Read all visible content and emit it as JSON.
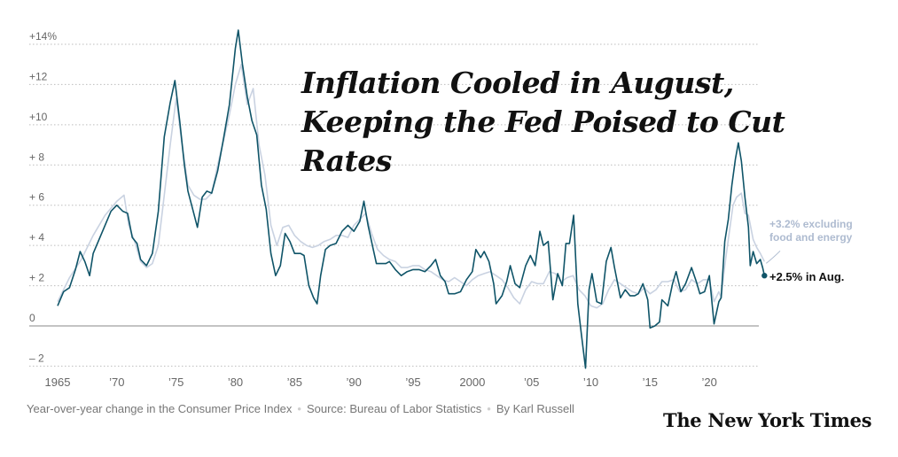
{
  "title": "Inflation Cooled in August, Keeping the Fed Poised to Cut Rates",
  "footer": {
    "description": "Year-over-year change in the Consumer Price Index",
    "source": "Source: Bureau of Labor Statistics",
    "byline": "By Karl Russell"
  },
  "brand": "The New York Times",
  "annotations": {
    "core_line1": "+3.2% excluding",
    "core_line2": "food and energy",
    "headline": "+2.5% in Aug."
  },
  "colors": {
    "headline_series": "#0f5468",
    "core_series": "#c9d2e1",
    "core_label": "#aebbd0"
  },
  "chart_data": {
    "type": "line",
    "title": "Inflation Cooled in August, Keeping the Fed Poised to Cut Rates",
    "xlabel": "",
    "ylabel": "",
    "xlim": [
      1965,
      2024.7
    ],
    "ylim": [
      -3,
      15
    ],
    "grid": true,
    "y_ticks": [
      {
        "value": 14,
        "label": "+14%"
      },
      {
        "value": 12,
        "label": "+12"
      },
      {
        "value": 10,
        "label": "+10"
      },
      {
        "value": 8,
        "label": "+ 8"
      },
      {
        "value": 6,
        "label": "+ 6"
      },
      {
        "value": 4,
        "label": "+ 4"
      },
      {
        "value": 2,
        "label": "+ 2"
      },
      {
        "value": 0,
        "label": "0"
      },
      {
        "value": -2,
        "label": "– 2"
      }
    ],
    "x_ticks": [
      {
        "value": 1965,
        "label": "1965"
      },
      {
        "value": 1970,
        "label": "’70"
      },
      {
        "value": 1975,
        "label": "’75"
      },
      {
        "value": 1980,
        "label": "’80"
      },
      {
        "value": 1985,
        "label": "’85"
      },
      {
        "value": 1990,
        "label": "’90"
      },
      {
        "value": 1995,
        "label": "’95"
      },
      {
        "value": 2000,
        "label": "2000"
      },
      {
        "value": 2005,
        "label": "’05"
      },
      {
        "value": 2010,
        "label": "’10"
      },
      {
        "value": 2015,
        "label": "’15"
      },
      {
        "value": 2020,
        "label": "’20"
      }
    ],
    "series": [
      {
        "key": "core",
        "color": "#c9d2e1",
        "points": [
          [
            1965.0,
            1.2
          ],
          [
            1966.0,
            2.4
          ],
          [
            1967.0,
            3.3
          ],
          [
            1968.0,
            4.5
          ],
          [
            1969.0,
            5.5
          ],
          [
            1970.0,
            6.2
          ],
          [
            1970.6,
            6.5
          ],
          [
            1971.0,
            5.0
          ],
          [
            1971.5,
            4.2
          ],
          [
            1972.0,
            3.2
          ],
          [
            1972.5,
            2.9
          ],
          [
            1973.0,
            3.1
          ],
          [
            1973.5,
            4.0
          ],
          [
            1974.0,
            6.5
          ],
          [
            1974.5,
            9.0
          ],
          [
            1975.0,
            11.3
          ],
          [
            1975.5,
            9.0
          ],
          [
            1976.0,
            7.0
          ],
          [
            1976.5,
            6.5
          ],
          [
            1977.0,
            6.3
          ],
          [
            1977.5,
            6.3
          ],
          [
            1978.0,
            6.6
          ],
          [
            1978.5,
            8.0
          ],
          [
            1979.0,
            9.2
          ],
          [
            1979.5,
            10.5
          ],
          [
            1980.0,
            12.0
          ],
          [
            1980.5,
            13.0
          ],
          [
            1981.0,
            11.0
          ],
          [
            1981.5,
            11.8
          ],
          [
            1982.0,
            9.0
          ],
          [
            1982.5,
            7.5
          ],
          [
            1983.0,
            5.0
          ],
          [
            1983.5,
            4.0
          ],
          [
            1984.0,
            4.9
          ],
          [
            1984.5,
            5.0
          ],
          [
            1985.0,
            4.5
          ],
          [
            1985.5,
            4.2
          ],
          [
            1986.0,
            4.0
          ],
          [
            1986.5,
            3.9
          ],
          [
            1987.0,
            4.0
          ],
          [
            1987.5,
            4.2
          ],
          [
            1988.0,
            4.3
          ],
          [
            1988.5,
            4.5
          ],
          [
            1989.0,
            4.5
          ],
          [
            1989.5,
            4.4
          ],
          [
            1990.0,
            5.0
          ],
          [
            1990.5,
            5.3
          ],
          [
            1991.0,
            5.6
          ],
          [
            1991.5,
            4.6
          ],
          [
            1992.0,
            3.8
          ],
          [
            1992.5,
            3.5
          ],
          [
            1993.0,
            3.3
          ],
          [
            1993.5,
            3.2
          ],
          [
            1994.0,
            2.9
          ],
          [
            1994.5,
            2.9
          ],
          [
            1995.0,
            3.0
          ],
          [
            1995.5,
            3.0
          ],
          [
            1996.0,
            2.8
          ],
          [
            1996.5,
            2.7
          ],
          [
            1997.0,
            2.5
          ],
          [
            1997.5,
            2.3
          ],
          [
            1998.0,
            2.2
          ],
          [
            1998.5,
            2.4
          ],
          [
            1999.0,
            2.2
          ],
          [
            1999.5,
            2.0
          ],
          [
            2000.0,
            2.3
          ],
          [
            2000.5,
            2.5
          ],
          [
            2001.0,
            2.6
          ],
          [
            2001.5,
            2.7
          ],
          [
            2002.0,
            2.5
          ],
          [
            2002.5,
            2.3
          ],
          [
            2003.0,
            1.9
          ],
          [
            2003.5,
            1.4
          ],
          [
            2004.0,
            1.1
          ],
          [
            2004.5,
            1.8
          ],
          [
            2005.0,
            2.2
          ],
          [
            2005.5,
            2.1
          ],
          [
            2006.0,
            2.1
          ],
          [
            2006.5,
            2.7
          ],
          [
            2007.0,
            2.6
          ],
          [
            2007.5,
            2.2
          ],
          [
            2008.0,
            2.4
          ],
          [
            2008.5,
            2.5
          ],
          [
            2009.0,
            1.8
          ],
          [
            2009.5,
            1.5
          ],
          [
            2010.0,
            1.0
          ],
          [
            2010.5,
            0.9
          ],
          [
            2011.0,
            1.1
          ],
          [
            2011.5,
            1.8
          ],
          [
            2012.0,
            2.3
          ],
          [
            2012.5,
            2.1
          ],
          [
            2013.0,
            1.9
          ],
          [
            2013.5,
            1.7
          ],
          [
            2014.0,
            1.6
          ],
          [
            2014.5,
            1.9
          ],
          [
            2015.0,
            1.6
          ],
          [
            2015.5,
            1.8
          ],
          [
            2016.0,
            2.2
          ],
          [
            2016.5,
            2.2
          ],
          [
            2017.0,
            2.3
          ],
          [
            2017.5,
            1.7
          ],
          [
            2018.0,
            1.8
          ],
          [
            2018.5,
            2.3
          ],
          [
            2019.0,
            2.1
          ],
          [
            2019.5,
            2.3
          ],
          [
            2020.0,
            2.3
          ],
          [
            2020.4,
            1.2
          ],
          [
            2020.8,
            1.7
          ],
          [
            2021.0,
            1.4
          ],
          [
            2021.3,
            3.0
          ],
          [
            2021.6,
            4.3
          ],
          [
            2022.0,
            6.0
          ],
          [
            2022.3,
            6.4
          ],
          [
            2022.7,
            6.6
          ],
          [
            2023.0,
            5.6
          ],
          [
            2023.3,
            5.5
          ],
          [
            2023.7,
            4.3
          ],
          [
            2024.0,
            3.9
          ],
          [
            2024.3,
            3.6
          ],
          [
            2024.65,
            3.2
          ]
        ]
      },
      {
        "key": "headline",
        "color": "#0f5468",
        "points": [
          [
            1965.0,
            1.0
          ],
          [
            1965.5,
            1.7
          ],
          [
            1966.0,
            1.9
          ],
          [
            1966.5,
            2.8
          ],
          [
            1966.9,
            3.7
          ],
          [
            1967.3,
            3.2
          ],
          [
            1967.7,
            2.5
          ],
          [
            1968.0,
            3.6
          ],
          [
            1968.5,
            4.3
          ],
          [
            1969.0,
            5.0
          ],
          [
            1969.5,
            5.7
          ],
          [
            1970.0,
            6.0
          ],
          [
            1970.5,
            5.7
          ],
          [
            1970.9,
            5.6
          ],
          [
            1971.3,
            4.4
          ],
          [
            1971.7,
            4.1
          ],
          [
            1972.0,
            3.3
          ],
          [
            1972.5,
            3.0
          ],
          [
            1973.0,
            3.6
          ],
          [
            1973.5,
            5.7
          ],
          [
            1974.0,
            9.4
          ],
          [
            1974.5,
            11.1
          ],
          [
            1974.9,
            12.2
          ],
          [
            1975.3,
            10.2
          ],
          [
            1975.7,
            8.0
          ],
          [
            1976.0,
            6.7
          ],
          [
            1976.4,
            5.8
          ],
          [
            1976.8,
            4.9
          ],
          [
            1977.2,
            6.4
          ],
          [
            1977.6,
            6.7
          ],
          [
            1978.0,
            6.6
          ],
          [
            1978.5,
            7.7
          ],
          [
            1979.0,
            9.3
          ],
          [
            1979.5,
            11.0
          ],
          [
            1980.0,
            13.8
          ],
          [
            1980.25,
            14.7
          ],
          [
            1980.6,
            13.0
          ],
          [
            1981.0,
            11.4
          ],
          [
            1981.4,
            10.2
          ],
          [
            1981.8,
            9.5
          ],
          [
            1982.2,
            7.0
          ],
          [
            1982.6,
            5.8
          ],
          [
            1983.0,
            3.6
          ],
          [
            1983.4,
            2.5
          ],
          [
            1983.8,
            3.0
          ],
          [
            1984.2,
            4.6
          ],
          [
            1984.6,
            4.2
          ],
          [
            1985.0,
            3.6
          ],
          [
            1985.5,
            3.6
          ],
          [
            1985.8,
            3.5
          ],
          [
            1986.2,
            2.0
          ],
          [
            1986.6,
            1.4
          ],
          [
            1986.9,
            1.1
          ],
          [
            1987.2,
            2.5
          ],
          [
            1987.6,
            3.8
          ],
          [
            1988.0,
            4.0
          ],
          [
            1988.5,
            4.1
          ],
          [
            1989.0,
            4.7
          ],
          [
            1989.5,
            5.0
          ],
          [
            1990.0,
            4.7
          ],
          [
            1990.5,
            5.2
          ],
          [
            1990.85,
            6.2
          ],
          [
            1991.2,
            5.0
          ],
          [
            1991.6,
            3.9
          ],
          [
            1991.9,
            3.1
          ],
          [
            1992.3,
            3.1
          ],
          [
            1992.7,
            3.1
          ],
          [
            1993.0,
            3.2
          ],
          [
            1993.5,
            2.8
          ],
          [
            1994.0,
            2.5
          ],
          [
            1994.5,
            2.7
          ],
          [
            1995.0,
            2.8
          ],
          [
            1995.5,
            2.8
          ],
          [
            1996.0,
            2.7
          ],
          [
            1996.5,
            3.0
          ],
          [
            1996.9,
            3.3
          ],
          [
            1997.3,
            2.5
          ],
          [
            1997.7,
            2.2
          ],
          [
            1998.0,
            1.6
          ],
          [
            1998.5,
            1.6
          ],
          [
            1999.0,
            1.7
          ],
          [
            1999.5,
            2.3
          ],
          [
            2000.0,
            2.7
          ],
          [
            2000.3,
            3.8
          ],
          [
            2000.7,
            3.4
          ],
          [
            2001.0,
            3.7
          ],
          [
            2001.4,
            3.2
          ],
          [
            2001.8,
            2.1
          ],
          [
            2002.0,
            1.1
          ],
          [
            2002.5,
            1.5
          ],
          [
            2002.9,
            2.2
          ],
          [
            2003.2,
            3.0
          ],
          [
            2003.6,
            2.1
          ],
          [
            2004.0,
            1.9
          ],
          [
            2004.5,
            3.0
          ],
          [
            2004.9,
            3.5
          ],
          [
            2005.3,
            3.0
          ],
          [
            2005.7,
            4.7
          ],
          [
            2006.0,
            4.0
          ],
          [
            2006.4,
            4.2
          ],
          [
            2006.8,
            1.3
          ],
          [
            2007.2,
            2.6
          ],
          [
            2007.6,
            2.0
          ],
          [
            2007.9,
            4.1
          ],
          [
            2008.2,
            4.1
          ],
          [
            2008.55,
            5.5
          ],
          [
            2008.9,
            1.1
          ],
          [
            2009.2,
            -0.4
          ],
          [
            2009.55,
            -2.1
          ],
          [
            2009.85,
            1.8
          ],
          [
            2010.1,
            2.6
          ],
          [
            2010.5,
            1.2
          ],
          [
            2010.9,
            1.1
          ],
          [
            2011.3,
            3.2
          ],
          [
            2011.7,
            3.9
          ],
          [
            2012.0,
            2.9
          ],
          [
            2012.5,
            1.4
          ],
          [
            2012.9,
            1.8
          ],
          [
            2013.3,
            1.5
          ],
          [
            2013.7,
            1.5
          ],
          [
            2014.0,
            1.6
          ],
          [
            2014.4,
            2.1
          ],
          [
            2014.8,
            1.3
          ],
          [
            2015.0,
            -0.1
          ],
          [
            2015.4,
            0.0
          ],
          [
            2015.8,
            0.2
          ],
          [
            2016.0,
            1.3
          ],
          [
            2016.5,
            1.0
          ],
          [
            2016.9,
            2.1
          ],
          [
            2017.2,
            2.7
          ],
          [
            2017.6,
            1.7
          ],
          [
            2018.0,
            2.1
          ],
          [
            2018.5,
            2.9
          ],
          [
            2018.9,
            2.2
          ],
          [
            2019.2,
            1.6
          ],
          [
            2019.6,
            1.7
          ],
          [
            2020.0,
            2.5
          ],
          [
            2020.4,
            0.1
          ],
          [
            2020.8,
            1.2
          ],
          [
            2021.0,
            1.4
          ],
          [
            2021.3,
            4.2
          ],
          [
            2021.6,
            5.3
          ],
          [
            2021.9,
            7.0
          ],
          [
            2022.2,
            8.3
          ],
          [
            2022.45,
            9.1
          ],
          [
            2022.7,
            8.2
          ],
          [
            2023.0,
            6.4
          ],
          [
            2023.3,
            4.9
          ],
          [
            2023.45,
            3.0
          ],
          [
            2023.7,
            3.7
          ],
          [
            2024.0,
            3.1
          ],
          [
            2024.3,
            3.3
          ],
          [
            2024.5,
            2.9
          ],
          [
            2024.65,
            2.5
          ]
        ]
      }
    ],
    "annotations": [
      {
        "text": "+3.2% excluding food and energy",
        "x": 2024.65,
        "y": 3.2
      },
      {
        "text": "+2.5% in Aug.",
        "x": 2024.65,
        "y": 2.5
      }
    ]
  }
}
